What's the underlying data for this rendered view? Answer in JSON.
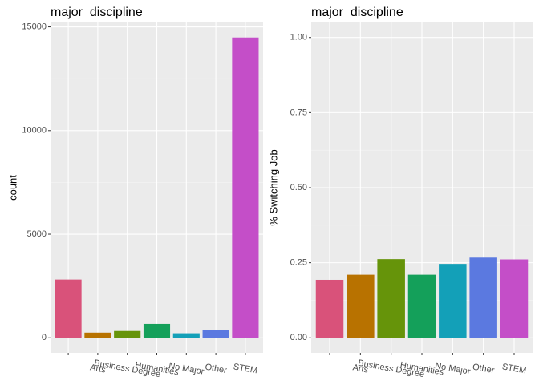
{
  "chart_data": [
    {
      "type": "bar",
      "title": "major_discipline",
      "ylabel": "count",
      "categories": [
        null,
        "Arts",
        "Business Degree",
        "Humanities",
        "No Major",
        "Other",
        "STEM"
      ],
      "values": [
        2810,
        250,
        330,
        670,
        220,
        380,
        14490
      ],
      "colors": [
        "#D9527A",
        "#B87200",
        "#66940A",
        "#14A05A",
        "#13A0B8",
        "#5B79E0",
        "#C44EC8"
      ],
      "ylim": [
        -725,
        15215
      ],
      "yticks": [
        0,
        5000,
        10000,
        15000
      ],
      "grid": true
    },
    {
      "type": "bar",
      "title": "major_discipline",
      "ylabel": "% Switching Job",
      "categories": [
        null,
        "Arts",
        "Business Degree",
        "Humanities",
        "No Major",
        "Other",
        "STEM"
      ],
      "values": [
        0.193,
        0.21,
        0.262,
        0.21,
        0.246,
        0.267,
        0.261
      ],
      "colors": [
        "#D9527A",
        "#B87200",
        "#66940A",
        "#14A05A",
        "#13A0B8",
        "#5B79E0",
        "#C44EC8"
      ],
      "ylim": [
        -0.05,
        1.05
      ],
      "yticks": [
        {
          "value": 0,
          "label": "0.00"
        },
        {
          "value": 0.25,
          "label": "0.25"
        },
        {
          "value": 0.5,
          "label": "0.50"
        },
        {
          "value": 0.75,
          "label": "0.75"
        },
        {
          "value": 1,
          "label": "1.00"
        }
      ],
      "grid": true
    }
  ]
}
